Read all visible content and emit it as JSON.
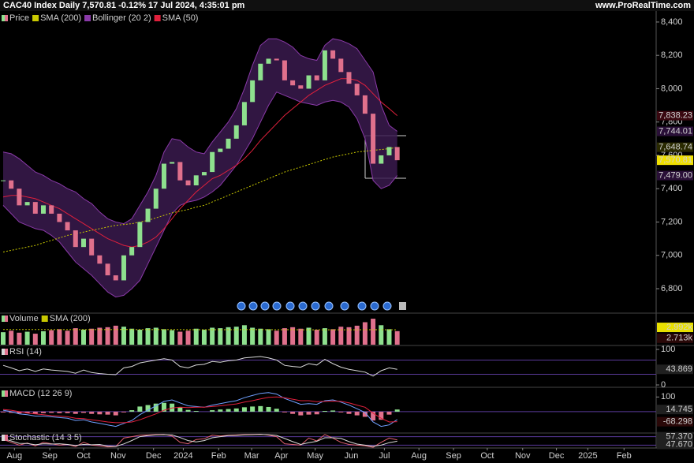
{
  "header": {
    "title": "CAC40 Index Daily 7,570.81 -0.12% 17 Jul 2024, 4:35:01 pm",
    "site": "www.ProRealTime.com"
  },
  "chart_data": [
    {
      "type": "candlestick",
      "x": [
        0,
        1,
        2,
        3,
        4,
        5,
        6,
        7,
        8,
        9,
        10,
        11,
        12,
        13,
        14,
        15,
        16,
        17,
        18,
        19,
        20,
        21,
        22,
        23,
        24,
        25,
        26,
        27,
        28,
        29,
        30,
        31,
        32,
        33,
        34,
        35,
        36,
        37,
        38,
        39,
        40,
        41,
        42,
        43,
        44,
        45,
        46,
        47,
        48,
        49
      ],
      "xlim": [
        0,
        81
      ],
      "xticks": [
        {
          "value": 1.4,
          "label": "Aug"
        },
        {
          "value": 5.8,
          "label": "Sep"
        },
        {
          "value": 10,
          "label": "Oct"
        },
        {
          "value": 14.3,
          "label": "Nov"
        },
        {
          "value": 18.7,
          "label": "Dec"
        },
        {
          "value": 22.4,
          "label": "2024"
        },
        {
          "value": 26.8,
          "label": "Feb"
        },
        {
          "value": 30.9,
          "label": "Mar"
        },
        {
          "value": 34.6,
          "label": "Apr"
        },
        {
          "value": 38.8,
          "label": "May"
        },
        {
          "value": 43.3,
          "label": "Jun"
        },
        {
          "value": 47.4,
          "label": "Jul"
        },
        {
          "value": 51.7,
          "label": "Aug"
        },
        {
          "value": 56,
          "label": "Sep"
        },
        {
          "value": 60.2,
          "label": "Oct"
        },
        {
          "value": 64.6,
          "label": "Nov"
        },
        {
          "value": 68.8,
          "label": "Dec"
        },
        {
          "value": 72.7,
          "label": "2025"
        },
        {
          "value": 77.2,
          "label": "Feb"
        }
      ],
      "ylim": [
        6658,
        8447
      ],
      "yticks": [
        {
          "value": 6800,
          "label": "6,800"
        },
        {
          "value": 7000,
          "label": "7,000"
        },
        {
          "value": 7200,
          "label": "7,200"
        },
        {
          "value": 7400,
          "label": "7,400"
        },
        {
          "value": 7600,
          "label": "7,600"
        },
        {
          "value": 7800,
          "label": "7,800"
        },
        {
          "value": 8000,
          "label": "8,000"
        },
        {
          "value": 8200,
          "label": "8,200"
        },
        {
          "value": 8400,
          "label": "8,400"
        }
      ],
      "series": [
        {
          "name": "Price",
          "color": "#8ee08e",
          "down_color": "#e0708c",
          "last_label": "7,570.81",
          "values": [
            7450,
            7400,
            7300,
            7320,
            7250,
            7300,
            7250,
            7200,
            7150,
            7050,
            7100,
            7000,
            6950,
            6880,
            6850,
            7000,
            7050,
            7200,
            7280,
            7400,
            7550,
            7560,
            7450,
            7420,
            7480,
            7500,
            7620,
            7640,
            7700,
            7780,
            7920,
            8050,
            8150,
            8180,
            8170,
            8050,
            8020,
            8000,
            8080,
            8050,
            8230,
            8180,
            8100,
            8030,
            7960,
            7850,
            7550,
            7600,
            7650,
            7570.81
          ]
        },
        {
          "name": "SMA (200)",
          "color": "#c8c800",
          "last_label": "7,648.74",
          "values": [
            7020,
            7030,
            7040,
            7050,
            7060,
            7075,
            7090,
            7105,
            7120,
            7130,
            7140,
            7150,
            7160,
            7170,
            7180,
            7185,
            7190,
            7200,
            7210,
            7225,
            7240,
            7255,
            7265,
            7275,
            7290,
            7300,
            7320,
            7340,
            7360,
            7380,
            7400,
            7420,
            7440,
            7460,
            7480,
            7500,
            7515,
            7530,
            7545,
            7560,
            7575,
            7590,
            7600,
            7610,
            7620,
            7625,
            7630,
            7635,
            7640,
            7648.74
          ]
        },
        {
          "name": "Bollinger (20 2)",
          "color": "#8a3aa8",
          "upper_label": "7,744.01",
          "lower_label": "7,479.00",
          "upper": [
            7620,
            7610,
            7580,
            7540,
            7500,
            7480,
            7450,
            7430,
            7400,
            7380,
            7340,
            7310,
            7260,
            7220,
            7200,
            7190,
            7220,
            7300,
            7380,
            7480,
            7620,
            7700,
            7690,
            7650,
            7620,
            7610,
            7680,
            7740,
            7800,
            7880,
            8000,
            8140,
            8260,
            8300,
            8300,
            8280,
            8250,
            8200,
            8180,
            8170,
            8260,
            8300,
            8290,
            8270,
            8240,
            8170,
            8100,
            7900,
            7780,
            7744.01
          ],
          "lower": [
            7300,
            7250,
            7200,
            7180,
            7160,
            7150,
            7120,
            7080,
            7020,
            6960,
            6920,
            6880,
            6830,
            6780,
            6750,
            6760,
            6800,
            6850,
            6950,
            7050,
            7150,
            7250,
            7300,
            7320,
            7330,
            7350,
            7380,
            7420,
            7480,
            7540,
            7620,
            7700,
            7800,
            7900,
            7980,
            7960,
            7940,
            7920,
            7910,
            7900,
            7920,
            7930,
            7920,
            7890,
            7820,
            7700,
            7450,
            7400,
            7420,
            7479
          ]
        },
        {
          "name": "SMA (50)",
          "color": "#e0203c",
          "last_label": "7,838.23",
          "values": [
            7350,
            7360,
            7360,
            7350,
            7340,
            7320,
            7300,
            7280,
            7250,
            7220,
            7190,
            7160,
            7130,
            7100,
            7080,
            7060,
            7050,
            7060,
            7080,
            7110,
            7160,
            7220,
            7280,
            7330,
            7380,
            7420,
            7460,
            7480,
            7510,
            7540,
            7580,
            7630,
            7690,
            7740,
            7790,
            7840,
            7880,
            7920,
            7960,
            7990,
            8020,
            8040,
            8060,
            8060,
            8050,
            8020,
            7970,
            7920,
            7880,
            7838.23
          ]
        }
      ]
    },
    {
      "type": "bar",
      "ylim": [
        0,
        6
      ],
      "series": [
        {
          "name": "Volume",
          "color": "#8ee08e",
          "down_color": "#e0708c",
          "last_label": "2.713k",
          "values": [
            2.5,
            2.8,
            2.4,
            2.6,
            2.2,
            2.7,
            2.9,
            3.1,
            2.8,
            3.3,
            3.0,
            3.2,
            3.4,
            3.5,
            3.8,
            3.6,
            3.2,
            3.0,
            3.3,
            3.4,
            3.1,
            2.9,
            2.6,
            2.8,
            3.2,
            3.0,
            3.4,
            3.3,
            3.5,
            3.6,
            3.9,
            3.4,
            3.2,
            3.1,
            2.8,
            3.3,
            3.5,
            3.2,
            3.4,
            3.0,
            3.3,
            3.1,
            3.6,
            3.5,
            3.8,
            4.5,
            5.2,
            3.9,
            3.1,
            2.713
          ]
        },
        {
          "name": "SMA (200)",
          "color": "#c8c800",
          "last_label": "2.992k",
          "values": [
            3.05,
            3.05,
            3.04,
            3.04,
            3.03,
            3.03,
            3.02,
            3.02,
            3.02,
            3.01,
            3.01,
            3.01,
            3.02,
            3.02,
            3.03,
            3.03,
            3.03,
            3.02,
            3.02,
            3.02,
            3.02,
            3.01,
            3.01,
            3.0,
            3.0,
            3.0,
            3.0,
            3.0,
            3.0,
            3.0,
            3.01,
            3.01,
            3.01,
            3.0,
            3.0,
            3.0,
            3.0,
            2.99,
            2.99,
            2.99,
            2.99,
            2.99,
            2.99,
            2.99,
            2.99,
            3.0,
            3.0,
            3.0,
            2.99,
            2.992
          ]
        }
      ]
    },
    {
      "type": "line",
      "name": "RSI (14)",
      "ylim": [
        -4.4,
        104.4
      ],
      "yticks": [
        0,
        100
      ],
      "levels": [
        70,
        30
      ],
      "series": [
        {
          "color": "#d8d8d8",
          "last_label": "43.869",
          "values": [
            55,
            48,
            40,
            45,
            38,
            45,
            42,
            40,
            38,
            33,
            42,
            35,
            32,
            30,
            29,
            48,
            52,
            62,
            66,
            70,
            74,
            70,
            52,
            48,
            56,
            58,
            66,
            64,
            68,
            70,
            76,
            78,
            80,
            76,
            70,
            55,
            52,
            50,
            60,
            56,
            72,
            60,
            50,
            44,
            40,
            36,
            25,
            40,
            48,
            43.869
          ]
        }
      ]
    },
    {
      "type": "macd",
      "name": "MACD (12 26 9)",
      "ylim": [
        -140,
        150
      ],
      "yticks": [
        100
      ],
      "levels": [
        0
      ],
      "histogram": [
        -5,
        -8,
        -12,
        -10,
        -15,
        -10,
        -8,
        -10,
        -10,
        -15,
        -8,
        -15,
        -18,
        -20,
        -25,
        -5,
        10,
        35,
        45,
        55,
        60,
        55,
        30,
        12,
        5,
        0,
        10,
        15,
        18,
        22,
        30,
        35,
        38,
        32,
        20,
        -5,
        -15,
        -25,
        -20,
        -18,
        5,
        8,
        -5,
        -15,
        -25,
        -35,
        -60,
        -55,
        -20,
        14.745
      ],
      "histogram_label": "14.745",
      "macd": [
        10,
        0,
        -15,
        -20,
        -30,
        -30,
        -35,
        -40,
        -45,
        -60,
        -55,
        -70,
        -80,
        -90,
        -100,
        -80,
        -60,
        -20,
        10,
        40,
        70,
        80,
        60,
        40,
        35,
        30,
        45,
        55,
        65,
        75,
        95,
        110,
        125,
        130,
        120,
        90,
        70,
        50,
        55,
        50,
        75,
        80,
        65,
        45,
        20,
        -5,
        -70,
        -100,
        -90,
        -53.553
      ],
      "signal": [
        15,
        10,
        0,
        -10,
        -15,
        -20,
        -27,
        -30,
        -35,
        -45,
        -47,
        -55,
        -62,
        -70,
        -75,
        -75,
        -70,
        -55,
        -35,
        -15,
        10,
        25,
        30,
        28,
        30,
        30,
        35,
        40,
        47,
        53,
        65,
        75,
        87,
        98,
        100,
        95,
        85,
        75,
        75,
        68,
        70,
        72,
        70,
        60,
        45,
        30,
        -10,
        -45,
        -70,
        -68.298
      ],
      "signal_label": "-68.298",
      "colors": {
        "up": "#8ee08e",
        "down": "#e0708c",
        "macd": "#6fa0ff",
        "signal": "#e0203c"
      }
    },
    {
      "type": "line",
      "name": "Stochastic (14 3 5)",
      "ylim": [
        0,
        100
      ],
      "levels": [
        80,
        20
      ],
      "series": [
        {
          "color": "#e06070",
          "last_label": "57.370",
          "values": [
            60,
            40,
            20,
            35,
            15,
            40,
            30,
            20,
            25,
            10,
            40,
            20,
            15,
            8,
            10,
            70,
            80,
            90,
            92,
            95,
            96,
            85,
            40,
            30,
            60,
            65,
            90,
            85,
            90,
            92,
            95,
            96,
            97,
            90,
            80,
            30,
            25,
            20,
            70,
            50,
            95,
            70,
            40,
            25,
            20,
            15,
            5,
            40,
            70,
            57.37
          ]
        },
        {
          "color": "#d8d8d8",
          "last_label": "47.670",
          "values": [
            65,
            50,
            33,
            32,
            23,
            30,
            28,
            30,
            25,
            18,
            25,
            23,
            25,
            14,
            11,
            29,
            53,
            80,
            87,
            92,
            94,
            92,
            74,
            52,
            43,
            52,
            72,
            80,
            88,
            89,
            92,
            94,
            96,
            94,
            89,
            67,
            45,
            25,
            38,
            47,
            72,
            72,
            68,
            45,
            28,
            20,
            13,
            20,
            38,
            47.67
          ]
        }
      ]
    }
  ]
}
